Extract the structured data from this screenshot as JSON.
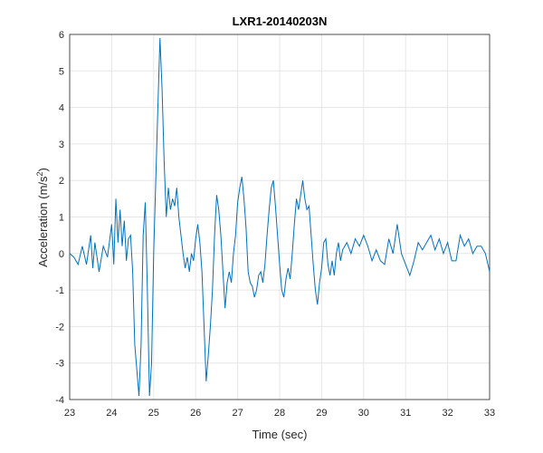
{
  "chart_data": {
    "type": "line",
    "title": "LXR1-20140203N",
    "xlabel": "Time (sec)",
    "ylabel": [
      "Acceleration (m/s",
      "2",
      ")"
    ],
    "xlim": [
      23,
      33
    ],
    "ylim": [
      -4,
      6
    ],
    "xticks": [
      23,
      24,
      25,
      26,
      27,
      28,
      29,
      30,
      31,
      32,
      33
    ],
    "yticks": [
      -4,
      -3,
      -2,
      -1,
      0,
      1,
      2,
      3,
      4,
      5,
      6
    ],
    "grid": true,
    "series": [
      {
        "color": "#0072bd",
        "x": [
          23.0,
          23.1,
          23.2,
          23.3,
          23.4,
          23.5,
          23.55,
          23.6,
          23.7,
          23.8,
          23.9,
          24.0,
          24.05,
          24.1,
          24.15,
          24.2,
          24.25,
          24.3,
          24.35,
          24.4,
          24.45,
          24.5,
          24.55,
          24.6,
          24.65,
          24.7,
          24.75,
          24.8,
          24.85,
          24.9,
          24.95,
          25.0,
          25.05,
          25.1,
          25.15,
          25.2,
          25.25,
          25.3,
          25.35,
          25.4,
          25.45,
          25.5,
          25.55,
          25.6,
          25.65,
          25.7,
          25.75,
          25.8,
          25.85,
          25.9,
          25.95,
          26.0,
          26.05,
          26.1,
          26.15,
          26.2,
          26.25,
          26.3,
          26.35,
          26.4,
          26.45,
          26.5,
          26.55,
          26.6,
          26.65,
          26.7,
          26.75,
          26.8,
          26.85,
          26.9,
          26.95,
          27.0,
          27.05,
          27.1,
          27.15,
          27.2,
          27.25,
          27.3,
          27.35,
          27.4,
          27.45,
          27.5,
          27.55,
          27.6,
          27.65,
          27.7,
          27.75,
          27.8,
          27.85,
          27.9,
          27.95,
          28.0,
          28.05,
          28.1,
          28.15,
          28.2,
          28.25,
          28.3,
          28.35,
          28.4,
          28.45,
          28.5,
          28.55,
          28.6,
          28.65,
          28.7,
          28.75,
          28.8,
          28.85,
          28.9,
          28.95,
          29.0,
          29.05,
          29.1,
          29.15,
          29.2,
          29.25,
          29.3,
          29.35,
          29.4,
          29.45,
          29.5,
          29.6,
          29.7,
          29.8,
          29.9,
          30.0,
          30.1,
          30.2,
          30.3,
          30.4,
          30.5,
          30.6,
          30.7,
          30.8,
          30.9,
          31.0,
          31.1,
          31.2,
          31.3,
          31.4,
          31.5,
          31.6,
          31.7,
          31.8,
          31.9,
          32.0,
          32.1,
          32.2,
          32.3,
          32.4,
          32.5,
          32.6,
          32.7,
          32.8,
          32.9,
          33.0
        ],
        "values": [
          0,
          -0.1,
          -0.3,
          0.2,
          -0.3,
          0.5,
          -0.4,
          0.3,
          -0.5,
          0.2,
          -0.1,
          0.8,
          -0.3,
          1.5,
          0.3,
          1.2,
          0.2,
          0.9,
          -0.2,
          0.4,
          0.5,
          -0.5,
          -2.5,
          -3.2,
          -3.9,
          -2.5,
          0.5,
          1.4,
          -1.0,
          -3.9,
          -3.0,
          0.0,
          2.0,
          4.0,
          5.9,
          4.5,
          2.5,
          1.0,
          1.8,
          1.2,
          1.5,
          1.3,
          1.8,
          1.0,
          0.5,
          0.0,
          -0.4,
          -0.1,
          -0.5,
          0.0,
          -0.2,
          0.4,
          0.8,
          0.3,
          -0.5,
          -2.0,
          -3.5,
          -2.8,
          -2.0,
          -1.0,
          0.5,
          1.6,
          1.2,
          0.5,
          -0.5,
          -1.5,
          -0.8,
          -0.5,
          -0.8,
          0.0,
          0.5,
          1.4,
          1.8,
          2.1,
          1.5,
          0.7,
          -0.5,
          -0.8,
          -0.9,
          -1.2,
          -1.0,
          -0.6,
          -0.5,
          -0.8,
          -0.3,
          0.5,
          1.2,
          1.8,
          2.0,
          1.3,
          0.5,
          -0.3,
          -1.0,
          -1.2,
          -0.7,
          -0.4,
          -0.7,
          0.0,
          0.8,
          1.5,
          1.2,
          1.6,
          2.0,
          1.5,
          1.2,
          1.3,
          0.5,
          -0.3,
          -1.0,
          -1.4,
          -0.8,
          -0.4,
          0.3,
          0.4,
          -0.3,
          -0.6,
          -0.2,
          -0.6,
          0.0,
          0.3,
          -0.2,
          0.1,
          0.3,
          0.0,
          0.4,
          0.2,
          0.5,
          0.2,
          -0.2,
          0.1,
          -0.2,
          -0.3,
          0.4,
          0.0,
          0.8,
          0.0,
          -0.3,
          -0.6,
          -0.2,
          0.3,
          0.1,
          0.3,
          0.5,
          0.1,
          0.4,
          0.0,
          0.3,
          -0.2,
          -0.2,
          0.5,
          0.2,
          0.4,
          0.0,
          0.2,
          0.2,
          0.0,
          -0.5
        ]
      }
    ]
  }
}
